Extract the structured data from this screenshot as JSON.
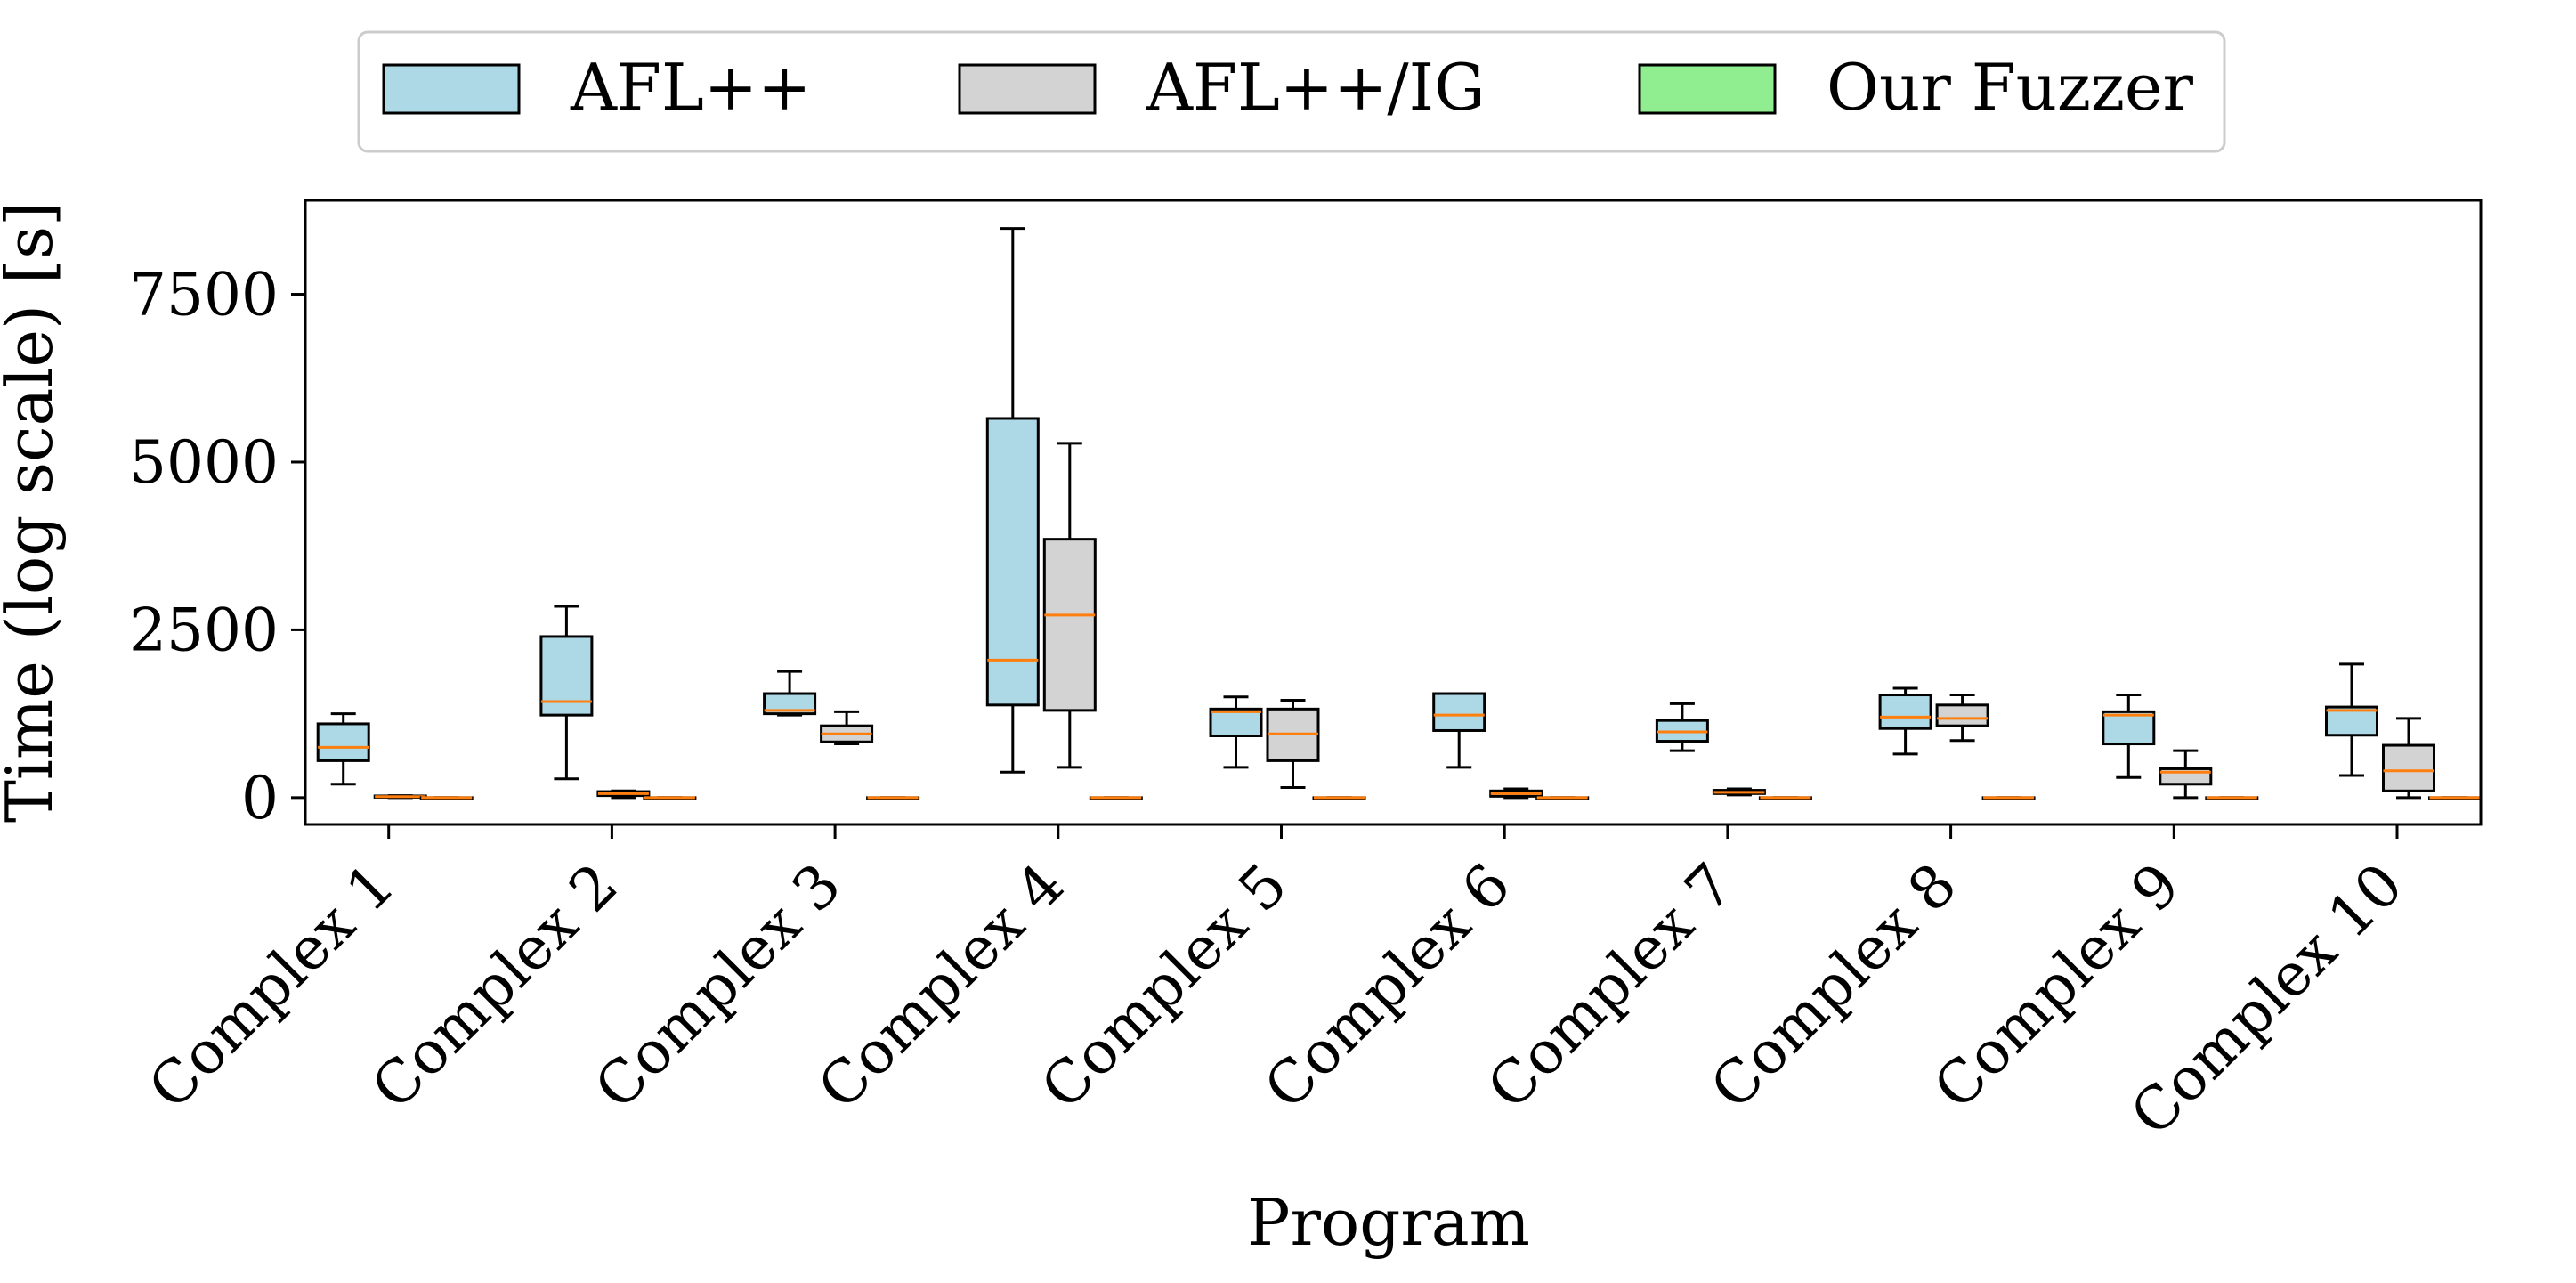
{
  "chart_data": {
    "type": "boxplot",
    "xlabel": "Program",
    "ylabel": "Time (log scale) [s]",
    "ylim": [
      -400,
      8900
    ],
    "yticks": [
      0,
      2500,
      5000,
      7500
    ],
    "ytick_labels": [
      "0",
      "2500",
      "5000",
      "7500"
    ],
    "categories": [
      "Complex 1",
      "Complex 2",
      "Complex 3",
      "Complex 4",
      "Complex 5",
      "Complex 6",
      "Complex 7",
      "Complex 8",
      "Complex 9",
      "Complex 10"
    ],
    "legend_position": "top-center",
    "median_color": "#ff7f0e",
    "series": [
      {
        "name": "AFL++",
        "color": "#add8e6",
        "boxes": [
          {
            "whislo": 200,
            "q1": 550,
            "med": 750,
            "q3": 1100,
            "whishi": 1250
          },
          {
            "whislo": 280,
            "q1": 1230,
            "med": 1430,
            "q3": 2400,
            "whishi": 2850
          },
          {
            "whislo": 1230,
            "q1": 1250,
            "med": 1300,
            "q3": 1550,
            "whishi": 1880
          },
          {
            "whislo": 380,
            "q1": 1380,
            "med": 2050,
            "q3": 5650,
            "whishi": 8480
          },
          {
            "whislo": 450,
            "q1": 920,
            "med": 1280,
            "q3": 1320,
            "whishi": 1500
          },
          {
            "whislo": 450,
            "q1": 1000,
            "med": 1230,
            "q3": 1550,
            "whishi": 1550
          },
          {
            "whislo": 700,
            "q1": 840,
            "med": 980,
            "q3": 1150,
            "whishi": 1400
          },
          {
            "whislo": 650,
            "q1": 1030,
            "med": 1200,
            "q3": 1530,
            "whishi": 1630
          },
          {
            "whislo": 300,
            "q1": 800,
            "med": 1230,
            "q3": 1280,
            "whishi": 1530
          },
          {
            "whislo": 330,
            "q1": 930,
            "med": 1300,
            "q3": 1350,
            "whishi": 1990
          }
        ]
      },
      {
        "name": "AFL++/IG",
        "color": "#d3d3d3",
        "boxes": [
          {
            "whislo": 0,
            "q1": 5,
            "med": 15,
            "q3": 25,
            "whishi": 30
          },
          {
            "whislo": 0,
            "q1": 30,
            "med": 60,
            "q3": 90,
            "whishi": 100
          },
          {
            "whislo": 800,
            "q1": 830,
            "med": 950,
            "q3": 1070,
            "whishi": 1280
          },
          {
            "whislo": 450,
            "q1": 1300,
            "med": 2720,
            "q3": 3850,
            "whishi": 5280
          },
          {
            "whislo": 150,
            "q1": 550,
            "med": 950,
            "q3": 1320,
            "whishi": 1450
          },
          {
            "whislo": 0,
            "q1": 20,
            "med": 60,
            "q3": 100,
            "whishi": 130
          },
          {
            "whislo": 40,
            "q1": 60,
            "med": 80,
            "q3": 110,
            "whishi": 130
          },
          {
            "whislo": 850,
            "q1": 1070,
            "med": 1180,
            "q3": 1380,
            "whishi": 1530
          },
          {
            "whislo": 0,
            "q1": 200,
            "med": 380,
            "q3": 430,
            "whishi": 700
          },
          {
            "whislo": 0,
            "q1": 100,
            "med": 400,
            "q3": 780,
            "whishi": 1180
          }
        ]
      },
      {
        "name": "Our Fuzzer",
        "color": "#90ee90",
        "boxes": [
          {
            "whislo": 0,
            "q1": 0,
            "med": 0,
            "q3": 0,
            "whishi": 0
          },
          {
            "whislo": 0,
            "q1": 0,
            "med": 0,
            "q3": 0,
            "whishi": 0
          },
          {
            "whislo": 0,
            "q1": 0,
            "med": 0,
            "q3": 0,
            "whishi": 0
          },
          {
            "whislo": 0,
            "q1": 0,
            "med": 0,
            "q3": 0,
            "whishi": 0
          },
          {
            "whislo": 0,
            "q1": 0,
            "med": 0,
            "q3": 0,
            "whishi": 0
          },
          {
            "whislo": 0,
            "q1": 0,
            "med": 0,
            "q3": 0,
            "whishi": 0
          },
          {
            "whislo": 0,
            "q1": 0,
            "med": 0,
            "q3": 0,
            "whishi": 0
          },
          {
            "whislo": 0,
            "q1": 0,
            "med": 0,
            "q3": 0,
            "whishi": 0
          },
          {
            "whislo": 0,
            "q1": 0,
            "med": 0,
            "q3": 0,
            "whishi": 0
          },
          {
            "whislo": 0,
            "q1": 0,
            "med": 0,
            "q3": 0,
            "whishi": 0
          }
        ]
      }
    ]
  }
}
